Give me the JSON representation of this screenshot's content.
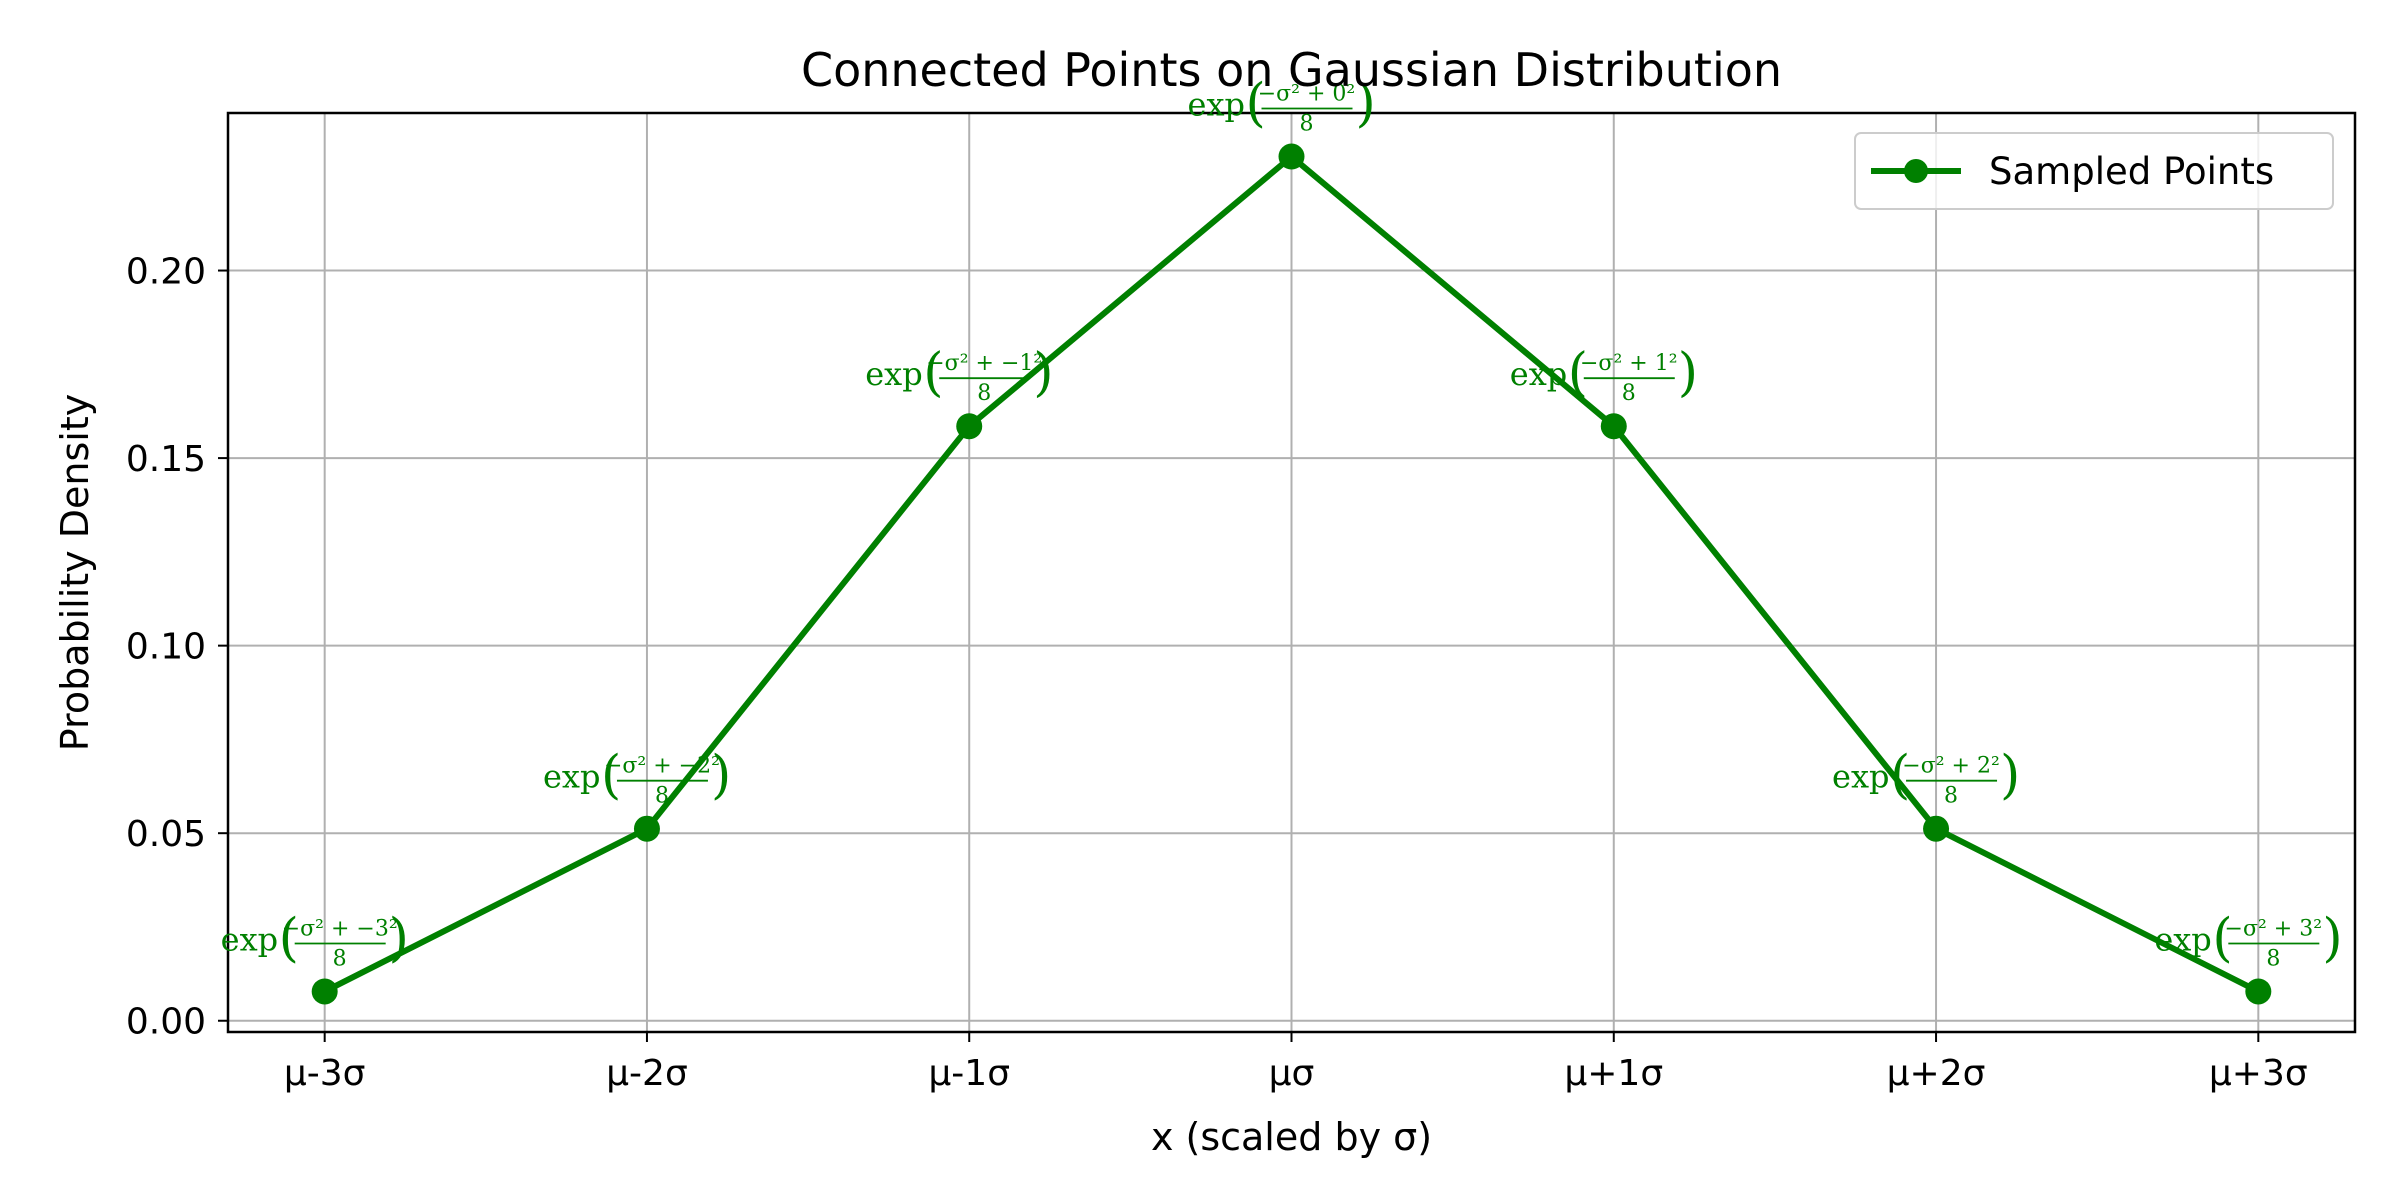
{
  "chart_data": {
    "type": "line",
    "title": "Connected Points on Gaussian Distribution",
    "xlabel": "x (scaled by σ)",
    "ylabel": "Probability Density",
    "categories": [
      "μ-3σ",
      "μ-2σ",
      "μ-1σ",
      "μσ",
      "μ+1σ",
      "μ+2σ",
      "μ+3σ"
    ],
    "x": [
      -3,
      -2,
      -1,
      0,
      1,
      2,
      3
    ],
    "xlim": [
      -3.3,
      3.3
    ],
    "ylim": [
      -0.003,
      0.242
    ],
    "yticks": [
      0.0,
      0.05,
      0.1,
      0.15,
      0.2
    ],
    "ytick_labels": [
      "0.00",
      "0.05",
      "0.10",
      "0.15",
      "0.20"
    ],
    "grid": true,
    "legend_position": "top-right",
    "series": [
      {
        "name": "Sampled Points",
        "color": "#008000",
        "values": [
          0.0078,
          0.0512,
          0.1585,
          0.2304,
          0.1585,
          0.0512,
          0.0078
        ],
        "annotations": [
          {
            "prefix": "exp",
            "numerator": "−σ² + −3²",
            "denominator": "8"
          },
          {
            "prefix": "exp",
            "numerator": "−σ² + −2²",
            "denominator": "8"
          },
          {
            "prefix": "exp",
            "numerator": "−σ² + −1²",
            "denominator": "8"
          },
          {
            "prefix": "exp",
            "numerator": "−σ² + 0²",
            "denominator": "8"
          },
          {
            "prefix": "exp",
            "numerator": "−σ² + 1²",
            "denominator": "8"
          },
          {
            "prefix": "exp",
            "numerator": "−σ² + 2²",
            "denominator": "8"
          },
          {
            "prefix": "exp",
            "numerator": "−σ² + 3²",
            "denominator": "8"
          }
        ]
      }
    ]
  }
}
